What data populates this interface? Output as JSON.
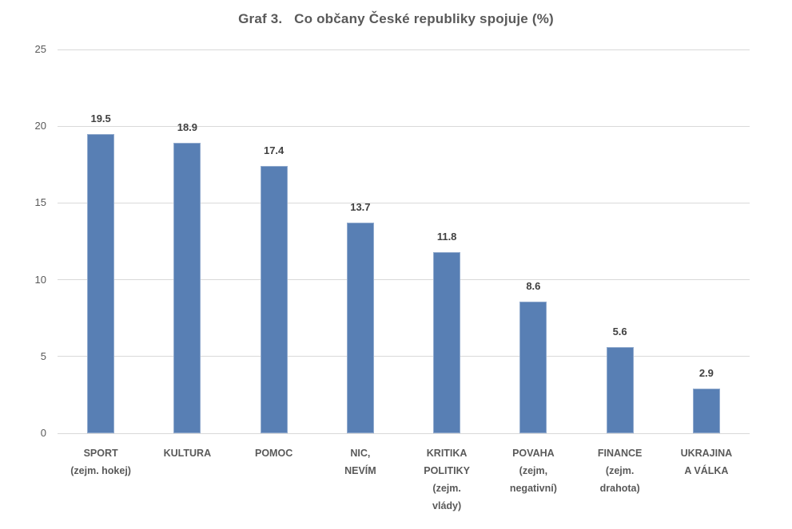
{
  "title": "Graf 3.   Co občany České republiky spojuje (%)",
  "colors": {
    "bar": "#587FB4",
    "bar_edge_highlight": "rgba(255,255,255,0.35)",
    "gridline": "#D9D9D9",
    "axis_text": "#595959",
    "title_text": "#595959",
    "value_label_text": "#404040",
    "background": "#FFFFFF"
  },
  "chart_data": {
    "type": "bar",
    "title": "Graf 3.   Co občany České republiky spojuje (%)",
    "categories": [
      "SPORT\n(zejm. hokej)",
      "KULTURA",
      "POMOC",
      "NIC,\nNEVÍM",
      "KRITIKA\nPOLITIKY\n(zejm.\nvlády)",
      "POVAHA\n(zejm,\nnegativní)",
      "FINANCE\n(zejm.\ndrahota)",
      "UKRAJINA\nA VÁLKA"
    ],
    "values": [
      19.5,
      18.9,
      17.4,
      13.7,
      11.8,
      8.6,
      5.6,
      2.9
    ],
    "data_labels": [
      "19.5",
      "18.9",
      "17.4",
      "13.7",
      "11.8",
      "8.6",
      "5.6",
      "2.9"
    ],
    "xlabel": "",
    "ylabel": "",
    "ylim": [
      0,
      25
    ],
    "yticks": [
      0,
      5,
      10,
      15,
      20,
      25
    ],
    "grid": true,
    "legend": false,
    "data_label_position": "outside-end"
  }
}
